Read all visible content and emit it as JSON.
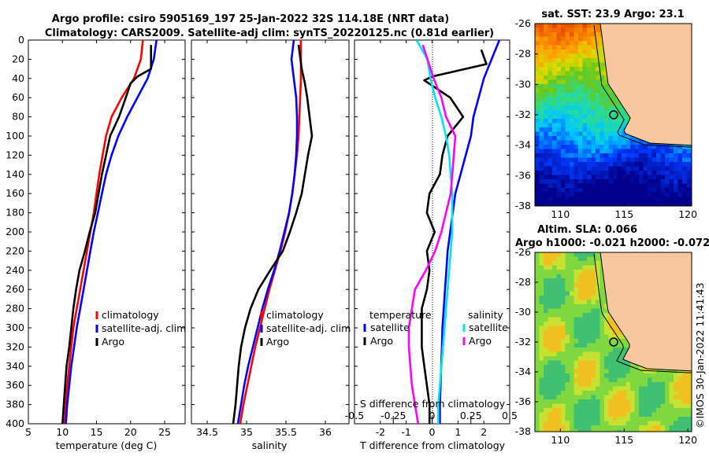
{
  "title": {
    "line1": "Argo profile: csiro 5905169_197 25-Jan-2022 32S 114.18E (NRT data)",
    "line2": "Climatology: CARS2009. Satellite-adj clim: synTS_20220125.nc (0.81d earlier)"
  },
  "side_text": "©IMOS 30-Jan-2022 11:41:43",
  "colors": {
    "climatology": "#ff0000",
    "satellite": "#0000ff",
    "argo": "#000000",
    "sat_salinity": "#00e5ee",
    "argo_salinity": "#ff00ff",
    "land": "#f9c79f"
  },
  "chart_data": [
    {
      "id": "temperature",
      "type": "line",
      "xlabel": "temperature (deg C)",
      "ylabel": "",
      "xlim": [
        5,
        28
      ],
      "ylim": [
        400,
        0
      ],
      "xticks": [
        "5",
        "10",
        "15",
        "20",
        "25"
      ],
      "yticks": [
        "0",
        "20",
        "40",
        "60",
        "80",
        "100",
        "120",
        "140",
        "160",
        "180",
        "200",
        "220",
        "240",
        "260",
        "280",
        "300",
        "320",
        "340",
        "360",
        "380",
        "400"
      ],
      "legend": {
        "position": "lower-right",
        "items": [
          "climatology",
          "satellite-adj. clim",
          "Argo"
        ]
      },
      "series": [
        {
          "name": "climatology",
          "color": "#ff0000",
          "depth": [
            0,
            20,
            40,
            60,
            80,
            100,
            120,
            140,
            160,
            180,
            200,
            220,
            240,
            260,
            280,
            300,
            320,
            340,
            360,
            380,
            400
          ],
          "values": [
            21.8,
            21.5,
            20.5,
            18.7,
            17.2,
            16.4,
            15.9,
            15.4,
            15.0,
            14.6,
            14.1,
            13.6,
            13.1,
            12.6,
            12.1,
            11.6,
            11.3,
            11.0,
            10.7,
            10.5,
            10.3
          ]
        },
        {
          "name": "satellite-adj. clim",
          "color": "#0000ff",
          "depth": [
            0,
            20,
            40,
            60,
            80,
            100,
            120,
            140,
            160,
            180,
            200,
            220,
            240,
            260,
            280,
            300,
            320,
            340,
            360,
            380,
            400
          ],
          "values": [
            23.8,
            23.4,
            22.5,
            21.0,
            19.5,
            18.2,
            17.2,
            16.4,
            15.8,
            15.2,
            14.6,
            14.1,
            13.6,
            13.1,
            12.6,
            12.1,
            11.7,
            11.3,
            11.0,
            10.7,
            10.5
          ]
        },
        {
          "name": "Argo",
          "color": "#000000",
          "depth": [
            5,
            30,
            38,
            45,
            60,
            80,
            100,
            120,
            140,
            160,
            180,
            200,
            220,
            240,
            260,
            280,
            300,
            320,
            340,
            360,
            380,
            400
          ],
          "values": [
            23.0,
            23.0,
            21.0,
            20.0,
            19.3,
            18.3,
            17.0,
            16.4,
            15.8,
            15.3,
            14.8,
            14.0,
            13.3,
            12.5,
            12.0,
            11.6,
            11.3,
            11.0,
            10.6,
            10.4,
            10.2,
            10.0
          ]
        }
      ]
    },
    {
      "id": "salinity",
      "type": "line",
      "xlabel": "salinity",
      "ylabel": "",
      "xlim": [
        34.3,
        36.3
      ],
      "ylim": [
        400,
        0
      ],
      "xticks": [
        "34.5",
        "35",
        "35.5",
        "36"
      ],
      "legend": {
        "position": "lower-right",
        "items": [
          "climatology",
          "satellite-adj. clim",
          "Argo"
        ]
      },
      "series": [
        {
          "name": "climatology",
          "color": "#ff0000",
          "depth": [
            0,
            20,
            40,
            60,
            80,
            100,
            120,
            140,
            160,
            180,
            200,
            220,
            240,
            260,
            280,
            300,
            320,
            340,
            360,
            380,
            400
          ],
          "values": [
            35.69,
            35.69,
            35.69,
            35.68,
            35.67,
            35.66,
            35.64,
            35.61,
            35.58,
            35.54,
            35.49,
            35.43,
            35.36,
            35.29,
            35.23,
            35.17,
            35.11,
            35.06,
            35.01,
            34.96,
            34.92
          ]
        },
        {
          "name": "satellite-adj. clim",
          "color": "#0000ff",
          "depth": [
            0,
            20,
            40,
            60,
            80,
            100,
            120,
            140,
            160,
            180,
            200,
            220,
            240,
            260,
            280,
            300,
            320,
            340,
            360,
            380,
            400
          ],
          "values": [
            35.6,
            35.57,
            35.6,
            35.63,
            35.64,
            35.64,
            35.63,
            35.61,
            35.58,
            35.54,
            35.48,
            35.42,
            35.35,
            35.27,
            35.2,
            35.14,
            35.08,
            35.02,
            34.97,
            34.93,
            34.89
          ]
        },
        {
          "name": "Argo",
          "color": "#000000",
          "depth": [
            5,
            30,
            45,
            60,
            80,
            100,
            120,
            140,
            160,
            180,
            200,
            220,
            240,
            260,
            280,
            300,
            320,
            340,
            360,
            380,
            400
          ],
          "values": [
            35.66,
            35.7,
            35.74,
            35.77,
            35.8,
            35.83,
            35.78,
            35.74,
            35.7,
            35.63,
            35.55,
            35.46,
            35.3,
            35.15,
            35.05,
            34.98,
            34.93,
            34.9,
            34.88,
            34.86,
            34.83
          ]
        }
      ]
    },
    {
      "id": "difference",
      "type": "line",
      "xlabel": "T difference from climatology",
      "xlabel_top": "S difference from climatology",
      "xlim": [
        -3,
        3
      ],
      "ylim": [
        400,
        0
      ],
      "xticks": [
        "-2",
        "-1",
        "0",
        "1",
        "2"
      ],
      "xticks_top": [
        "-0.5",
        "-0.25",
        "0",
        "0.25",
        "0.5"
      ],
      "legend": {
        "position": "lower-center",
        "groups": [
          {
            "heading": "temperature",
            "items": [
              "satellite",
              "Argo"
            ]
          },
          {
            "heading": "salinity",
            "items": [
              "satellite",
              "Argo"
            ]
          }
        ]
      },
      "series": [
        {
          "name": "temperature satellite",
          "color": "#0000ff",
          "depth": [
            0,
            20,
            40,
            60,
            80,
            100,
            120,
            140,
            160,
            180,
            200,
            220,
            240,
            260,
            280,
            300,
            320,
            340,
            360,
            380,
            400
          ],
          "values": [
            2.6,
            2.3,
            2.0,
            1.8,
            1.6,
            1.5,
            1.3,
            1.1,
            0.9,
            0.8,
            0.7,
            0.6,
            0.55,
            0.5,
            0.45,
            0.4,
            0.38,
            0.35,
            0.33,
            0.3,
            0.3
          ]
        },
        {
          "name": "temperature Argo",
          "color": "#000000",
          "depth": [
            10,
            25,
            38,
            42,
            60,
            80,
            100,
            120,
            140,
            160,
            180,
            200,
            220,
            240,
            260,
            280,
            300,
            320,
            340,
            360,
            380,
            400
          ],
          "values": [
            1.9,
            2.1,
            0.0,
            -0.3,
            0.7,
            1.2,
            0.6,
            0.4,
            0.3,
            -0.1,
            -0.2,
            0.1,
            -0.2,
            -0.1,
            -0.2,
            -0.4,
            -0.4,
            -0.4,
            -0.3,
            -0.2,
            -0.1,
            -0.1
          ]
        },
        {
          "name": "salinity satellite",
          "color": "#00e5ee",
          "depth": [
            0,
            20,
            40,
            60,
            80,
            100,
            120,
            140,
            160,
            180,
            200,
            220,
            240,
            260,
            280,
            300,
            320,
            340,
            360,
            380,
            400
          ],
          "values": [
            -0.1,
            -0.03,
            -0.01,
            0.02,
            0.06,
            0.09,
            0.11,
            0.12,
            0.13,
            0.13,
            0.13,
            0.12,
            0.11,
            0.1,
            0.09,
            0.08,
            0.07,
            0.06,
            0.05,
            0.04,
            0.04
          ]
        },
        {
          "name": "salinity Argo",
          "color": "#ff00ff",
          "depth": [
            5,
            20,
            40,
            60,
            80,
            100,
            120,
            140,
            160,
            180,
            200,
            220,
            240,
            260,
            280,
            300,
            320,
            340,
            360,
            380,
            400
          ],
          "values": [
            -0.06,
            -0.03,
            0.01,
            0.06,
            0.09,
            0.15,
            0.14,
            0.13,
            0.12,
            0.09,
            0.06,
            0.02,
            -0.04,
            -0.11,
            -0.13,
            -0.15,
            -0.15,
            -0.14,
            -0.13,
            -0.11,
            -0.09
          ]
        }
      ]
    },
    {
      "id": "sst-map",
      "type": "heatmap",
      "title": "sat. SST: 23.9 Argo: 23.1",
      "xlim": [
        108,
        120.3
      ],
      "ylim": [
        -38,
        -26
      ],
      "xticks": [
        "110",
        "115",
        "120"
      ],
      "yticks": [
        "-26",
        "-28",
        "-30",
        "-32",
        "-34",
        "-36",
        "-38"
      ],
      "argo_position": {
        "lon": 114.18,
        "lat": -32.0
      }
    },
    {
      "id": "sla-map",
      "type": "heatmap",
      "title": "Altim. SLA: 0.066",
      "subtitle": "Argo h1000: -0.021 h2000: -0.072",
      "xlim": [
        108,
        120.3
      ],
      "ylim": [
        -38,
        -26
      ],
      "xticks": [
        "110",
        "115",
        "120"
      ],
      "yticks": [
        "-26",
        "-28",
        "-30",
        "-32",
        "-34",
        "-36",
        "-38"
      ],
      "argo_position": {
        "lon": 114.18,
        "lat": -32.0
      }
    }
  ]
}
